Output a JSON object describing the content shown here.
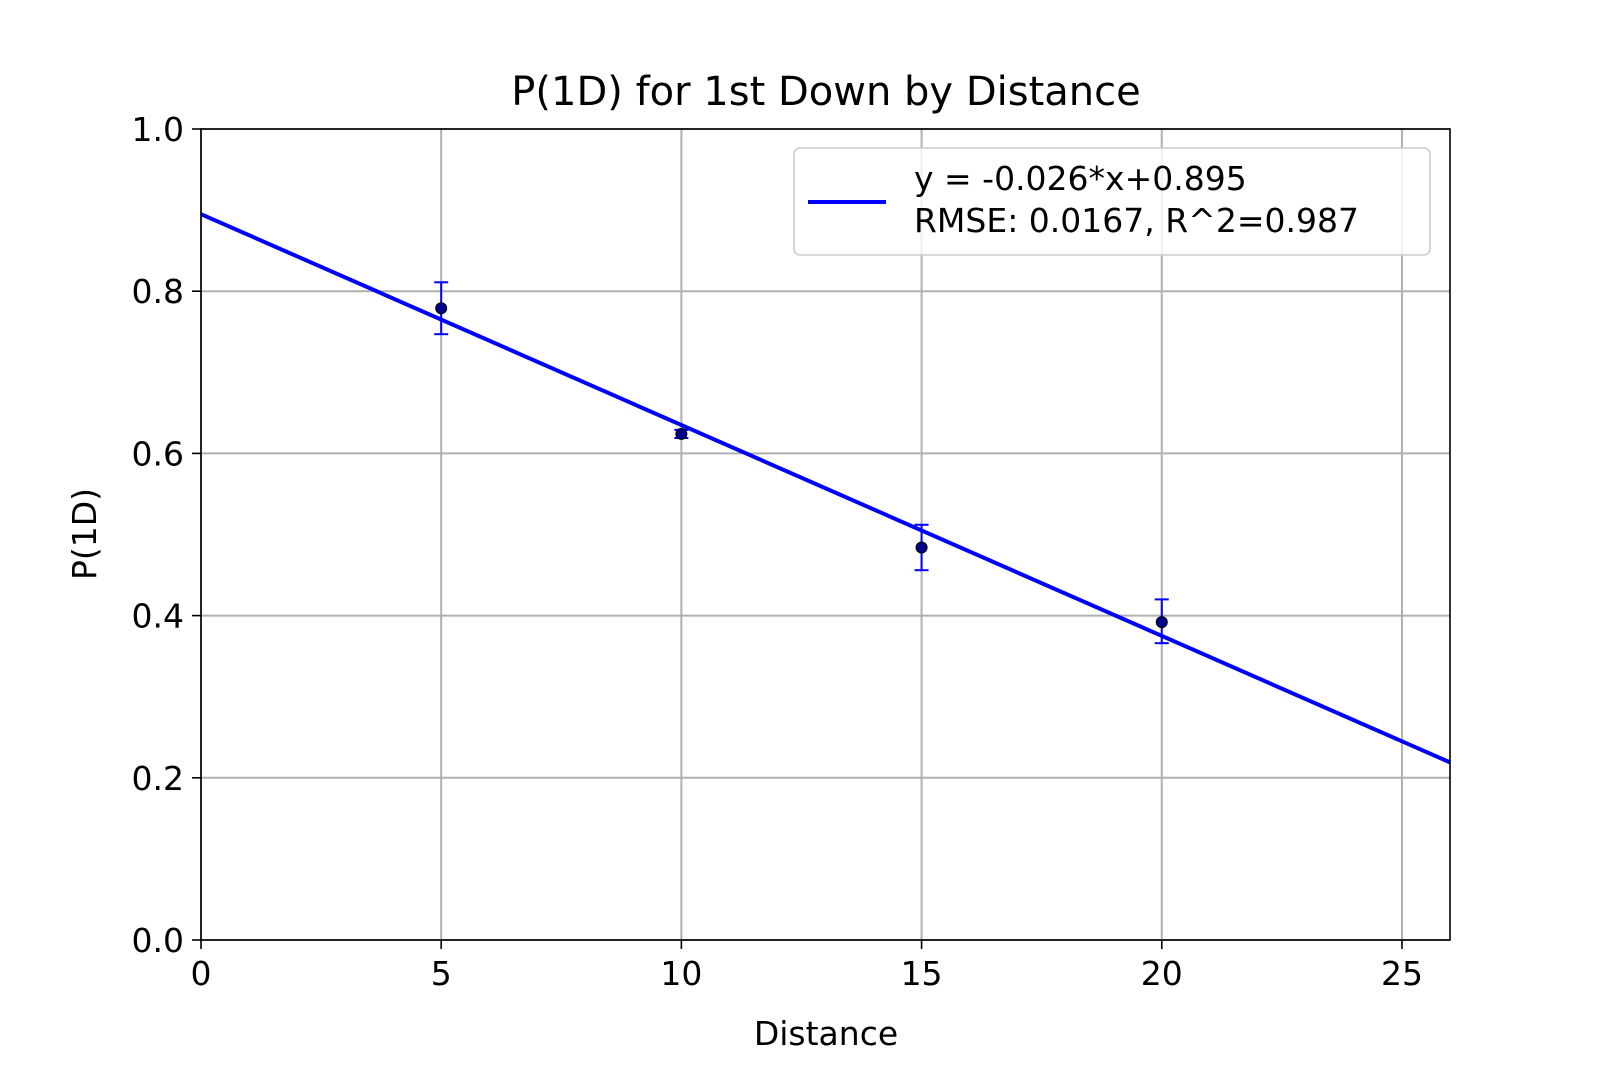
{
  "chart_data": {
    "type": "scatter",
    "title": "P(1D) for 1st Down by Distance",
    "xlabel": "Distance",
    "ylabel": "P(1D)",
    "xlim": [
      0,
      26
    ],
    "ylim": [
      0.0,
      1.0
    ],
    "x_ticks": [
      "0",
      "5",
      "10",
      "15",
      "20",
      "25"
    ],
    "y_ticks": [
      "0.0",
      "0.2",
      "0.4",
      "0.6",
      "0.8",
      "1.0"
    ],
    "grid": true,
    "legend_position": "top-right",
    "points": [
      {
        "x": 5,
        "y": 0.779,
        "err_low": 0.747,
        "err_high": 0.811
      },
      {
        "x": 10,
        "y": 0.624,
        "err_low": 0.619,
        "err_high": 0.629
      },
      {
        "x": 15,
        "y": 0.484,
        "err_low": 0.456,
        "err_high": 0.512
      },
      {
        "x": 20,
        "y": 0.392,
        "err_low": 0.366,
        "err_high": 0.42
      }
    ],
    "fit": {
      "slope": -0.026,
      "intercept": 0.895,
      "legend_line1": "y = -0.026*x+0.895",
      "legend_line2": "RMSE: 0.0167, R^2=0.987"
    },
    "colors": {
      "fit_line": "#0000ff",
      "points": "#00008b",
      "error_bars": "#0000ff",
      "grid": "#b0b0b0"
    }
  }
}
